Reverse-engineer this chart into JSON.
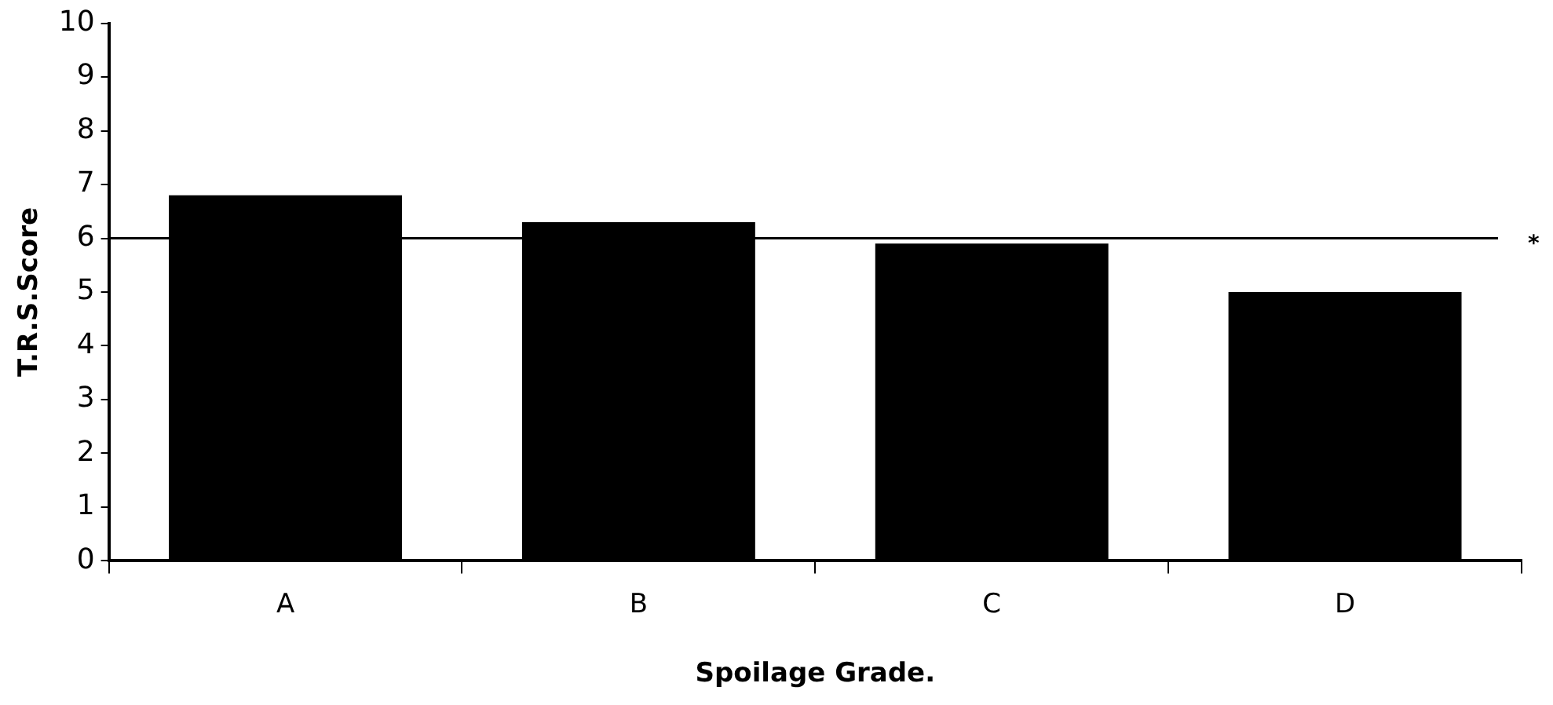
{
  "chart_data": {
    "type": "bar",
    "xlabel": "Spoilage Grade.",
    "ylabel": "T.R.S.Score",
    "categories": [
      "A",
      "B",
      "C",
      "D"
    ],
    "values": [
      6.8,
      6.3,
      5.9,
      5
    ],
    "color": "#000000",
    "ylim": [
      0,
      10
    ],
    "yticks": [
      0,
      1,
      2,
      3,
      4,
      5,
      6,
      7,
      8,
      9,
      10
    ],
    "ref_lines": [
      {
        "axis": "y",
        "value": 6,
        "label": "*",
        "color": "#000000"
      }
    ],
    "grid": false,
    "legend": false
  }
}
